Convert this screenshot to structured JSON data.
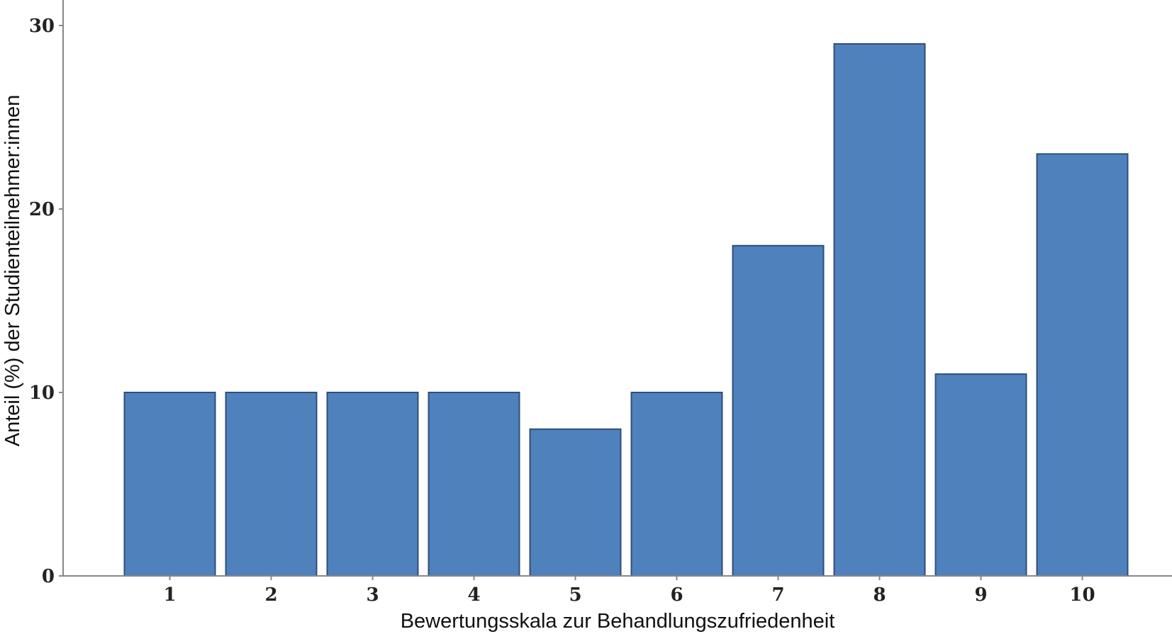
{
  "chart_data": {
    "type": "bar",
    "categories": [
      "1",
      "2",
      "3",
      "4",
      "5",
      "6",
      "7",
      "8",
      "9",
      "10"
    ],
    "values": [
      10,
      10,
      10,
      10,
      8,
      10,
      18,
      29,
      11,
      23
    ],
    "xlabel": "Bewertungsskala zur Behandlungszufriedenheit",
    "ylabel": "Anteil (%) der Studienteilnehmer:innen",
    "ylim": [
      0,
      31
    ],
    "yticks": [
      0,
      10,
      20,
      30
    ],
    "grid": false,
    "colors": {
      "bar_fill": "#4f81bd",
      "bar_stroke": "#2f4f7a",
      "axis": "#888888",
      "text": "#222222"
    }
  }
}
